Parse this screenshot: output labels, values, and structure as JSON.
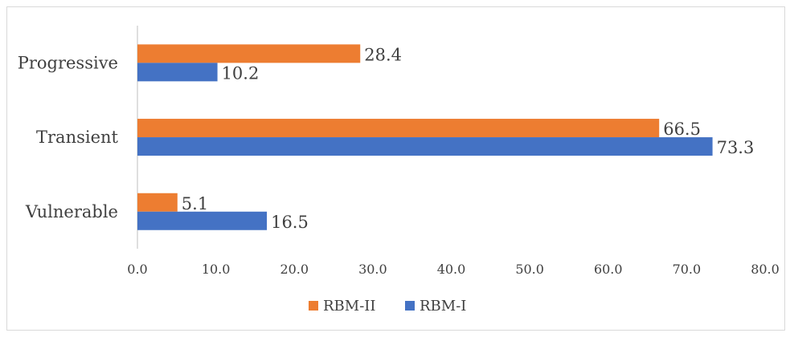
{
  "chart_data": {
    "type": "bar",
    "orientation": "horizontal",
    "title": "",
    "xlabel": "",
    "ylabel": "",
    "categories": [
      "Progressive",
      "Transient",
      "Vulnerable"
    ],
    "series": [
      {
        "name": "RBM-II",
        "color": "#ed7d31",
        "values": [
          28.4,
          66.5,
          5.1
        ]
      },
      {
        "name": "RBM-I",
        "color": "#4472c4",
        "values": [
          10.2,
          73.3,
          16.5
        ]
      }
    ],
    "xlim": [
      0,
      80
    ],
    "x_ticks": [
      "0.0",
      "10.0",
      "20.0",
      "30.0",
      "40.0",
      "50.0",
      "60.0",
      "70.0",
      "80.0"
    ],
    "data_labels": {
      "RBM-II": [
        "28.4",
        "66.5",
        "5.1"
      ],
      "RBM-I": [
        "10.2",
        "73.3",
        "16.5"
      ]
    },
    "grid": false,
    "legend_position": "bottom"
  }
}
